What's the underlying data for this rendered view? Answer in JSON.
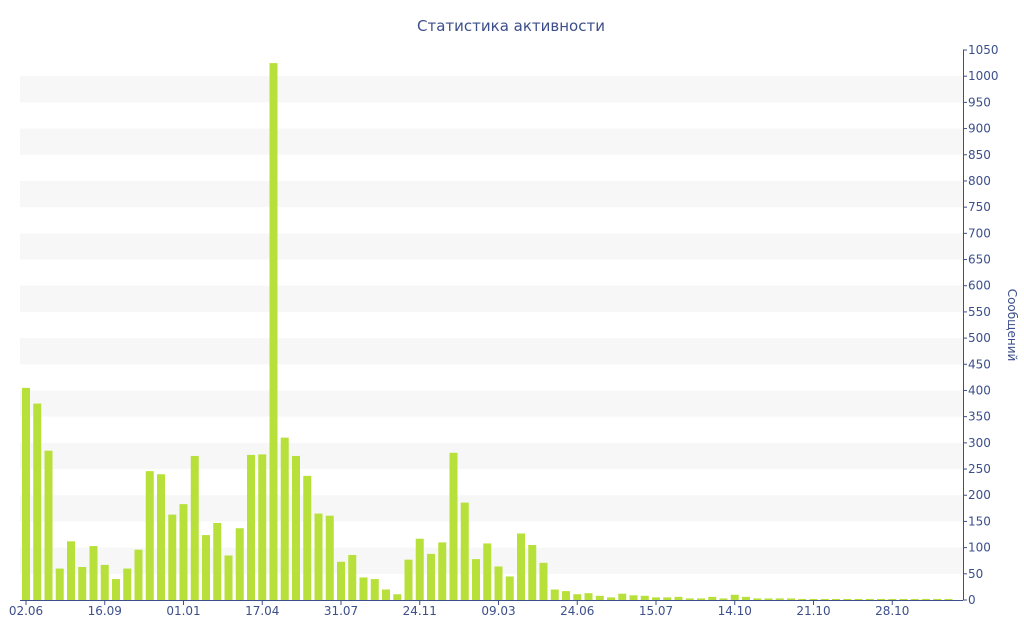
{
  "chart_data": {
    "type": "bar",
    "title": "Статистика активности",
    "xlabel": "",
    "ylabel": "Сообщений",
    "y_axis_side": "right",
    "ylim": [
      0,
      1050
    ],
    "y_ticks": [
      0,
      50,
      100,
      150,
      200,
      250,
      300,
      350,
      400,
      450,
      500,
      550,
      600,
      650,
      700,
      750,
      800,
      850,
      900,
      950,
      1000,
      1050
    ],
    "x_tick_labels": [
      {
        "label": "02.06",
        "index": 0
      },
      {
        "label": "16.09",
        "index": 7
      },
      {
        "label": "01.01",
        "index": 14
      },
      {
        "label": "17.04",
        "index": 21
      },
      {
        "label": "31.07",
        "index": 28
      },
      {
        "label": "24.11",
        "index": 35
      },
      {
        "label": "09.03",
        "index": 42
      },
      {
        "label": "24.06",
        "index": 49
      },
      {
        "label": "15.07",
        "index": 56
      },
      {
        "label": "14.10",
        "index": 63
      },
      {
        "label": "21.10",
        "index": 70
      },
      {
        "label": "28.10",
        "index": 77
      }
    ],
    "grid": "alternating horizontal bands",
    "colors": {
      "bar": "#b8e03a",
      "band": "#f7f7f7",
      "text": "#3c4f8a",
      "axis": "#3c4f8a"
    },
    "values": [
      405,
      375,
      285,
      60,
      112,
      63,
      103,
      67,
      40,
      60,
      96,
      246,
      240,
      163,
      183,
      275,
      124,
      147,
      85,
      137,
      277,
      278,
      1025,
      310,
      275,
      237,
      165,
      161,
      73,
      86,
      43,
      40,
      20,
      11,
      77,
      117,
      88,
      110,
      281,
      186,
      78,
      108,
      64,
      45,
      127,
      105,
      71,
      20,
      17,
      11,
      13,
      8,
      5,
      12,
      9,
      8,
      5,
      5,
      6,
      3,
      3,
      6,
      3,
      10,
      6,
      3,
      3,
      3,
      3,
      2,
      2,
      2,
      2,
      2,
      2,
      2,
      2,
      2,
      2,
      2,
      2,
      2,
      2
    ]
  }
}
